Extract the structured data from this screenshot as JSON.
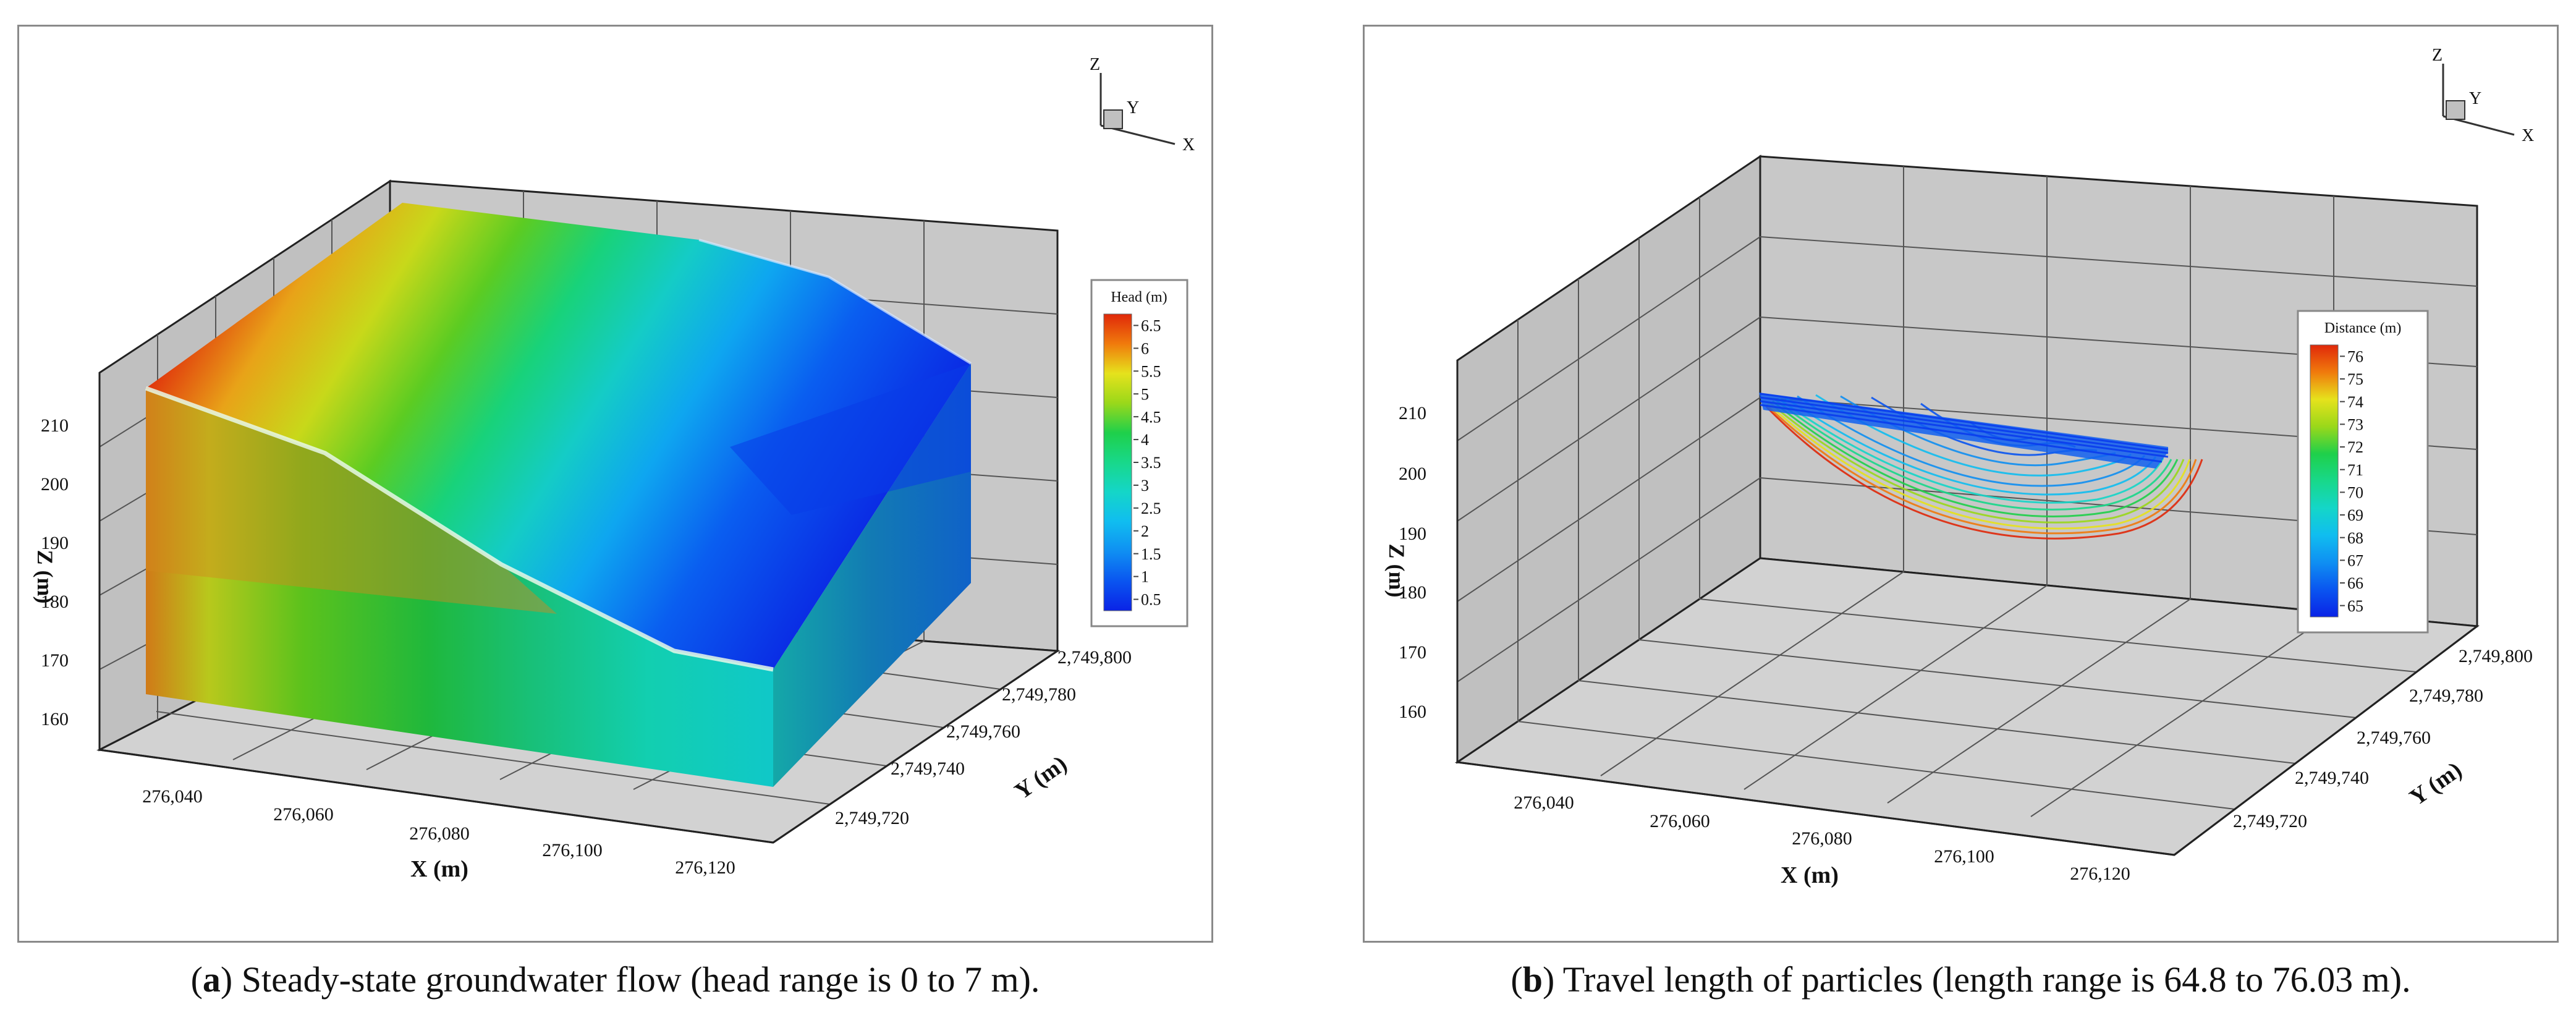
{
  "colors": {
    "wall": "#c8c8c8",
    "wall_line": "#7a7a7a",
    "frame": "#222222",
    "head_scale": [
      "#0a23e6",
      "#0a55f0",
      "#0f8ff2",
      "#10bdf0",
      "#14d6c8",
      "#18d88a",
      "#1fd04a",
      "#4fd11c",
      "#9ad81a",
      "#e6e21c",
      "#f5b812",
      "#f07a0c",
      "#e0280a"
    ],
    "distance_scale": [
      "#0a23e6",
      "#0a55f0",
      "#0f8ff2",
      "#10bdf0",
      "#14d6c8",
      "#18d88a",
      "#1fd04a",
      "#4fd11c",
      "#9ad81a",
      "#e6e21c",
      "#f5b812",
      "#f07a0c",
      "#e0280a"
    ]
  },
  "chart_data": [
    {
      "type": "surface3d",
      "panel_label": "a",
      "caption": "Steady-state groundwater flow (head range is 0 to 7 m).",
      "x_axis": {
        "label": "X (m)",
        "ticks": [
          "276,040",
          "276,060",
          "276,080",
          "276,100",
          "276,120"
        ],
        "range": [
          276030,
          276130
        ]
      },
      "y_axis": {
        "label": "Y (m)",
        "ticks": [
          "2,749,720",
          "2,749,740",
          "2,749,760",
          "2,749,780",
          "2,749,800"
        ],
        "range": [
          2749710,
          2749810
        ]
      },
      "z_axis": {
        "label": "Z (m)",
        "ticks": [
          "160",
          "170",
          "180",
          "190",
          "200",
          "210"
        ],
        "range": [
          150,
          220
        ]
      },
      "orientation_labels": [
        "Z",
        "Y",
        "X"
      ],
      "legend": {
        "title": "Head (m)",
        "labels": [
          "6.5",
          "6",
          "5.5",
          "5",
          "4.5",
          "4",
          "3.5",
          "3",
          "2.5",
          "2",
          "1.5",
          "1",
          "0.5"
        ],
        "min": 0,
        "max": 7
      }
    },
    {
      "type": "pathlines3d",
      "panel_label": "b",
      "caption": "Travel length of particles (length range is 64.8 to 76.03 m).",
      "x_axis": {
        "label": "X (m)",
        "ticks": [
          "276,040",
          "276,060",
          "276,080",
          "276,100",
          "276,120"
        ],
        "range": [
          276030,
          276130
        ]
      },
      "y_axis": {
        "label": "Y (m)",
        "ticks": [
          "2,749,720",
          "2,749,740",
          "2,749,760",
          "2,749,780",
          "2,749,800"
        ],
        "range": [
          2749710,
          2749810
        ]
      },
      "z_axis": {
        "label": "Z (m)",
        "ticks": [
          "160",
          "170",
          "180",
          "190",
          "200",
          "210"
        ],
        "range": [
          150,
          220
        ]
      },
      "orientation_labels": [
        "Z",
        "Y",
        "X"
      ],
      "legend": {
        "title": "Distance (m)",
        "labels": [
          "76",
          "75",
          "74",
          "73",
          "72",
          "71",
          "70",
          "69",
          "68",
          "67",
          "66",
          "65"
        ],
        "min": 64.8,
        "max": 76.03
      }
    }
  ]
}
